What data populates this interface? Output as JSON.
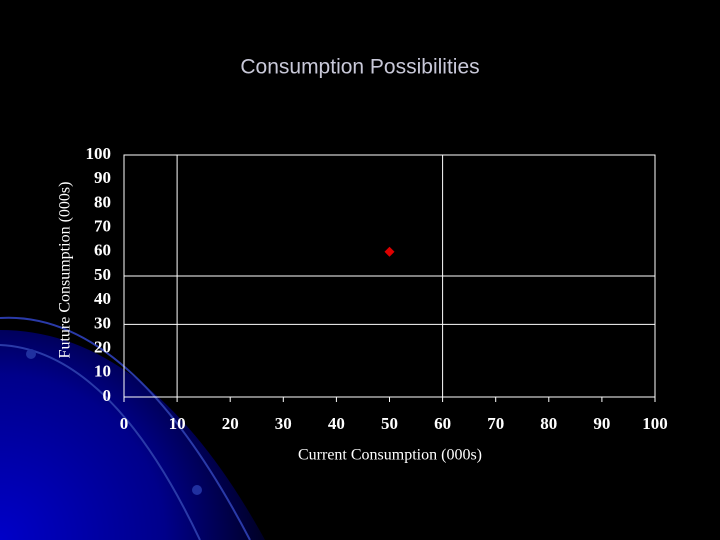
{
  "chart_data": {
    "type": "scatter",
    "title": "Consumption Possibilities",
    "x_label": "Current Consumption (000s)",
    "y_label": "Future Consumption (000s)",
    "series": [
      {
        "color": "#dd0000",
        "x": [
          50
        ],
        "values": [
          60
        ]
      }
    ],
    "xlim": [
      0,
      100
    ],
    "xticks": [
      0,
      10,
      20,
      30,
      40,
      50,
      60,
      70,
      80,
      90,
      100
    ],
    "ylim": [
      0,
      100
    ],
    "yticks": [
      0,
      10,
      20,
      30,
      40,
      50,
      60,
      70,
      80,
      90,
      100
    ],
    "x_grid": [
      10,
      60
    ],
    "y_grid": [
      30,
      50
    ]
  }
}
